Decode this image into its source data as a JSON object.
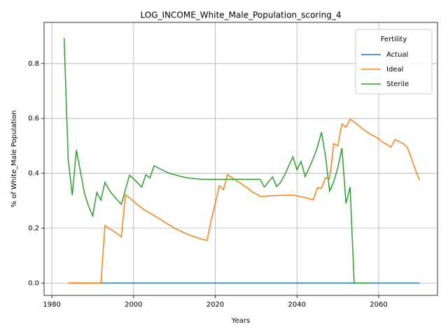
{
  "chart_data": {
    "type": "line",
    "title": "LOG_INCOME_White_Male_Population_scoring_4",
    "xlabel": "Years",
    "ylabel": "% of White_Male Population",
    "x": [
      1983,
      1984,
      1985,
      1986,
      1987,
      1988,
      1989,
      1990,
      1991,
      1992,
      1993,
      1994,
      1995,
      1996,
      1997,
      1998,
      1999,
      2000,
      2001,
      2002,
      2003,
      2004,
      2005,
      2006,
      2007,
      2008,
      2009,
      2010,
      2011,
      2012,
      2013,
      2014,
      2015,
      2016,
      2017,
      2018,
      2019,
      2020,
      2021,
      2022,
      2023,
      2024,
      2025,
      2026,
      2027,
      2028,
      2029,
      2030,
      2031,
      2032,
      2033,
      2034,
      2035,
      2036,
      2037,
      2038,
      2039,
      2040,
      2041,
      2042,
      2043,
      2044,
      2045,
      2046,
      2047,
      2048,
      2049,
      2050,
      2051,
      2052,
      2053,
      2054,
      2055,
      2056,
      2057,
      2058,
      2059,
      2060,
      2061,
      2062,
      2063,
      2064,
      2065,
      2066,
      2067,
      2068,
      2069,
      2070
    ],
    "series": [
      {
        "name": "Actual",
        "color": "#1f77b4",
        "values": [
          null,
          0,
          0,
          0,
          0,
          0,
          0,
          0,
          0,
          0,
          0,
          0,
          0,
          0,
          0,
          0,
          0,
          0,
          0,
          0,
          0,
          0,
          0,
          0,
          0,
          0,
          0,
          0,
          0,
          0,
          0,
          0,
          0,
          0,
          0,
          0,
          0,
          0,
          0,
          0,
          0,
          0,
          0,
          0,
          0,
          0,
          0,
          0,
          0,
          0,
          0,
          0,
          0,
          0,
          0,
          0,
          0,
          0,
          0,
          0,
          0,
          0,
          0,
          0,
          0,
          0,
          0,
          0,
          0,
          0,
          0,
          0,
          0,
          0,
          0,
          0,
          0,
          0,
          0,
          0,
          0,
          0,
          0,
          0,
          0,
          0,
          0,
          0
        ]
      },
      {
        "name": "Ideal",
        "color": "#ff7f0e",
        "values": [
          null,
          0,
          0,
          0,
          0,
          0,
          0,
          0,
          0,
          0,
          0.21,
          0.198,
          0.19,
          0.18,
          0.168,
          0.322,
          0.31,
          0.298,
          0.285,
          0.274,
          0.263,
          0.255,
          0.246,
          0.237,
          0.228,
          0.218,
          0.209,
          0.2,
          0.193,
          0.186,
          0.179,
          0.173,
          0.168,
          0.163,
          0.159,
          0.155,
          0.23,
          0.29,
          0.355,
          0.34,
          0.395,
          0.385,
          0.375,
          0.365,
          0.355,
          0.345,
          0.332,
          0.325,
          0.316,
          0.316,
          0.318,
          0.318,
          0.319,
          0.319,
          0.32,
          0.32,
          0.32,
          0.318,
          0.315,
          0.311,
          0.307,
          0.303,
          0.348,
          0.345,
          0.385,
          0.38,
          0.508,
          0.5,
          0.58,
          0.568,
          0.597,
          0.587,
          0.575,
          0.562,
          0.552,
          0.542,
          0.535,
          0.525,
          0.513,
          0.505,
          0.495,
          0.523,
          0.515,
          0.508,
          0.495,
          0.455,
          0.412,
          0.375
        ]
      },
      {
        "name": "Sterile",
        "color": "#2ca02c",
        "values": [
          0.893,
          0.45,
          0.32,
          0.485,
          0.405,
          0.325,
          0.28,
          0.245,
          0.33,
          0.302,
          0.367,
          0.34,
          0.32,
          0.303,
          0.287,
          0.34,
          0.393,
          0.38,
          0.365,
          0.35,
          0.395,
          0.383,
          0.427,
          0.42,
          0.412,
          0.405,
          0.399,
          0.395,
          0.391,
          0.387,
          0.384,
          0.382,
          0.38,
          0.379,
          0.378,
          0.378,
          0.378,
          0.378,
          0.378,
          0.378,
          0.378,
          0.378,
          0.378,
          0.378,
          0.378,
          0.378,
          0.378,
          0.378,
          0.378,
          0.35,
          0.368,
          0.387,
          0.352,
          0.367,
          0.395,
          0.427,
          0.46,
          0.413,
          0.443,
          0.388,
          0.42,
          0.455,
          0.495,
          0.55,
          0.46,
          0.335,
          0.37,
          0.42,
          0.492,
          0.29,
          0.35,
          0,
          0,
          0,
          0,
          0,
          null,
          null,
          null,
          null,
          null,
          null,
          null,
          null,
          null,
          null,
          null,
          null
        ]
      }
    ],
    "xlim": [
      1978.1,
      2074.4
    ],
    "ylim": [
      -0.045,
      0.95
    ],
    "xticks": [
      1980,
      2000,
      2020,
      2040,
      2060
    ],
    "yticks": [
      {
        "value": 0,
        "label": "0.0"
      },
      0.2,
      0.4,
      0.6,
      0.8
    ],
    "grid": true,
    "legend_title": "Fertility",
    "legend": "upper right"
  }
}
